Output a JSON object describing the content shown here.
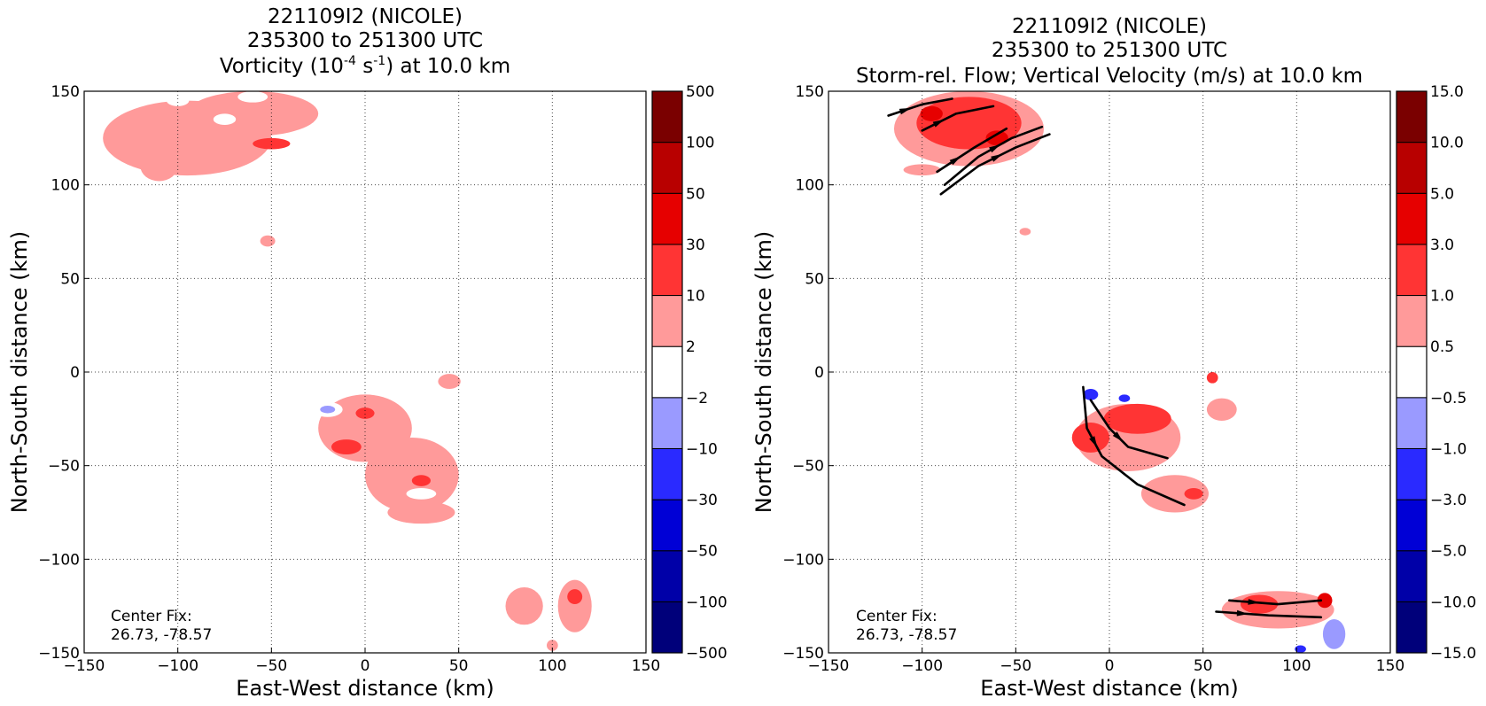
{
  "chart_data": [
    {
      "type": "heatmap",
      "title_line1": "221109I2 (NICOLE)",
      "title_line2": "235300 to 251300 UTC",
      "title_line3": {
        "pre": "Vorticity (10",
        "sup1": "-4",
        "mid": " s",
        "sup2": "-1",
        "post": ") at 10.0 km"
      },
      "xlabel": "East-West distance (km)",
      "ylabel": "North-South distance (km)",
      "xlim": [
        -150,
        150
      ],
      "ylim": [
        -150,
        150
      ],
      "xticks": [
        "−150",
        "−100",
        "−50",
        "0",
        "50",
        "100",
        "150"
      ],
      "yticks": [
        "−150",
        "−100",
        "−50",
        "0",
        "50",
        "100",
        "150"
      ],
      "grid": true,
      "annotation": {
        "line1": "Center Fix:",
        "line2": "26.73, -78.57"
      },
      "colorbar": {
        "levels": [
          "−500",
          "−100",
          "−50",
          "−30",
          "−10",
          "−2",
          "2",
          "10",
          "30",
          "50",
          "100",
          "500"
        ],
        "colors": [
          "#00007a",
          "#0000a8",
          "#0000d6",
          "#2a2aff",
          "#9a9aff",
          "#ffffff",
          "#ff9a9a",
          "#ff3434",
          "#e60000",
          "#b80000",
          "#7a0000"
        ]
      },
      "regions": [
        {
          "level": 2,
          "x": -95,
          "y": 125,
          "rx": 45,
          "ry": 20
        },
        {
          "level": 2,
          "x": -60,
          "y": 138,
          "rx": 35,
          "ry": 12
        },
        {
          "level": 2,
          "x": -110,
          "y": 110,
          "rx": 10,
          "ry": 8
        },
        {
          "level": 10,
          "x": -50,
          "y": 122,
          "rx": 10,
          "ry": 3
        },
        {
          "level": -2,
          "x": -100,
          "y": 145,
          "rx": 6,
          "ry": 3
        },
        {
          "level": -2,
          "x": -75,
          "y": 135,
          "rx": 6,
          "ry": 3
        },
        {
          "level": -2,
          "x": -60,
          "y": 147,
          "rx": 8,
          "ry": 3
        },
        {
          "level": 2,
          "x": -52,
          "y": 70,
          "rx": 4,
          "ry": 3
        },
        {
          "level": 2,
          "x": 0,
          "y": -30,
          "rx": 25,
          "ry": 18
        },
        {
          "level": 2,
          "x": 25,
          "y": -55,
          "rx": 25,
          "ry": 20
        },
        {
          "level": 2,
          "x": 30,
          "y": -75,
          "rx": 18,
          "ry": 6
        },
        {
          "level": 2,
          "x": 45,
          "y": -5,
          "rx": 6,
          "ry": 4
        },
        {
          "level": 10,
          "x": -10,
          "y": -40,
          "rx": 8,
          "ry": 4
        },
        {
          "level": 10,
          "x": 0,
          "y": -22,
          "rx": 5,
          "ry": 3
        },
        {
          "level": 10,
          "x": 30,
          "y": -58,
          "rx": 5,
          "ry": 3
        },
        {
          "level": -2,
          "x": -20,
          "y": -20,
          "rx": 8,
          "ry": 4
        },
        {
          "level": -10,
          "x": -20,
          "y": -20,
          "rx": 4,
          "ry": 2
        },
        {
          "level": -2,
          "x": 30,
          "y": -65,
          "rx": 8,
          "ry": 3
        },
        {
          "level": -2,
          "x": 45,
          "y": -30,
          "rx": 4,
          "ry": 3
        },
        {
          "level": 2,
          "x": 112,
          "y": -125,
          "rx": 9,
          "ry": 14
        },
        {
          "level": 10,
          "x": 112,
          "y": -120,
          "rx": 4,
          "ry": 4
        },
        {
          "level": 2,
          "x": 85,
          "y": -125,
          "rx": 10,
          "ry": 10
        },
        {
          "level": -2,
          "x": 67,
          "y": -122,
          "rx": 5,
          "ry": 3
        },
        {
          "level": -2,
          "x": 75,
          "y": -134,
          "rx": 5,
          "ry": 2
        },
        {
          "level": -2,
          "x": 85,
          "y": -108,
          "rx": 5,
          "ry": 2
        },
        {
          "level": 2,
          "x": 100,
          "y": -146,
          "rx": 3,
          "ry": 3
        }
      ]
    },
    {
      "type": "heatmap",
      "title_line1": "221109I2 (NICOLE)",
      "title_line2": "235300 to 251300 UTC",
      "title_line3": {
        "pre": "Storm-rel. Flow; Vertical Velocity (m/s) at 10.0 km",
        "sup1": "",
        "mid": "",
        "sup2": "",
        "post": ""
      },
      "xlabel": "East-West distance (km)",
      "ylabel": "North-South distance (km)",
      "xlim": [
        -150,
        150
      ],
      "ylim": [
        -150,
        150
      ],
      "xticks": [
        "−150",
        "−100",
        "−50",
        "0",
        "50",
        "100",
        "150"
      ],
      "yticks": [
        "−150",
        "−100",
        "−50",
        "0",
        "50",
        "100",
        "150"
      ],
      "grid": true,
      "annotation": {
        "line1": "Center Fix:",
        "line2": "26.73, -78.57"
      },
      "colorbar": {
        "levels": [
          "−15.0",
          "−10.0",
          "−5.0",
          "−3.0",
          "−1.0",
          "−0.5",
          "0.5",
          "1.0",
          "3.0",
          "5.0",
          "10.0",
          "15.0"
        ],
        "colors": [
          "#00007a",
          "#0000a8",
          "#0000d6",
          "#2a2aff",
          "#9a9aff",
          "#ffffff",
          "#ff9a9a",
          "#ff3434",
          "#e60000",
          "#b80000",
          "#7a0000"
        ]
      },
      "regions": [
        {
          "level": 0.5,
          "x": -75,
          "y": 130,
          "rx": 40,
          "ry": 20
        },
        {
          "level": 1,
          "x": -75,
          "y": 133,
          "rx": 28,
          "ry": 14
        },
        {
          "level": 3,
          "x": -95,
          "y": 138,
          "rx": 6,
          "ry": 4
        },
        {
          "level": 3,
          "x": -60,
          "y": 125,
          "rx": 6,
          "ry": 4
        },
        {
          "level": 0.5,
          "x": -100,
          "y": 108,
          "rx": 10,
          "ry": 3
        },
        {
          "level": -0.5,
          "x": -80,
          "y": 97,
          "rx": 3,
          "ry": 2
        },
        {
          "level": 0.5,
          "x": -45,
          "y": 75,
          "rx": 3,
          "ry": 2
        },
        {
          "level": 0.5,
          "x": 10,
          "y": -35,
          "rx": 28,
          "ry": 18
        },
        {
          "level": 1,
          "x": 15,
          "y": -25,
          "rx": 18,
          "ry": 8
        },
        {
          "level": 1,
          "x": -10,
          "y": -35,
          "rx": 10,
          "ry": 8
        },
        {
          "level": 0.5,
          "x": 35,
          "y": -65,
          "rx": 18,
          "ry": 10
        },
        {
          "level": 1,
          "x": 45,
          "y": -65,
          "rx": 5,
          "ry": 3
        },
        {
          "level": 0.5,
          "x": 60,
          "y": -20,
          "rx": 8,
          "ry": 6
        },
        {
          "level": 1,
          "x": 55,
          "y": -3,
          "rx": 3,
          "ry": 3
        },
        {
          "level": -0.5,
          "x": -8,
          "y": -10,
          "rx": 8,
          "ry": 5
        },
        {
          "level": -3,
          "x": -10,
          "y": -12,
          "rx": 4,
          "ry": 3
        },
        {
          "level": -0.5,
          "x": 5,
          "y": -14,
          "rx": 6,
          "ry": 3
        },
        {
          "level": -3,
          "x": 8,
          "y": -14,
          "rx": 3,
          "ry": 2
        },
        {
          "level": 0.5,
          "x": 90,
          "y": -127,
          "rx": 30,
          "ry": 10
        },
        {
          "level": 1,
          "x": 80,
          "y": -124,
          "rx": 10,
          "ry": 5
        },
        {
          "level": 3,
          "x": 115,
          "y": -122,
          "rx": 4,
          "ry": 4
        },
        {
          "level": -1,
          "x": 120,
          "y": -140,
          "rx": 6,
          "ry": 8
        },
        {
          "level": -3,
          "x": 102,
          "y": -148,
          "rx": 3,
          "ry": 2
        }
      ],
      "streamlines": [
        {
          "pts": [
            [
              -118,
              137
            ],
            [
              -100,
              143
            ],
            [
              -84,
              146
            ]
          ]
        },
        {
          "pts": [
            [
              -100,
              129
            ],
            [
              -82,
              138
            ],
            [
              -62,
              142
            ]
          ]
        },
        {
          "pts": [
            [
              -88,
              100
            ],
            [
              -70,
              115
            ],
            [
              -52,
              125
            ],
            [
              -36,
              131
            ]
          ]
        },
        {
          "pts": [
            [
              -92,
              107
            ],
            [
              -72,
              120
            ],
            [
              -55,
              130
            ]
          ]
        },
        {
          "pts": [
            [
              -90,
              95
            ],
            [
              -70,
              110
            ],
            [
              -50,
              120
            ],
            [
              -32,
              127
            ]
          ]
        },
        {
          "pts": [
            [
              -14,
              -8
            ],
            [
              -12,
              -30
            ],
            [
              -4,
              -45
            ],
            [
              15,
              -60
            ],
            [
              40,
              -71
            ]
          ]
        },
        {
          "pts": [
            [
              -10,
              -15
            ],
            [
              0,
              -30
            ],
            [
              10,
              -40
            ],
            [
              31,
              -46
            ]
          ]
        },
        {
          "pts": [
            [
              64,
              -122
            ],
            [
              90,
              -124
            ],
            [
              113,
              -122
            ]
          ]
        },
        {
          "pts": [
            [
              57,
              -128
            ],
            [
              85,
              -130
            ],
            [
              113,
              -131
            ]
          ]
        }
      ]
    }
  ]
}
